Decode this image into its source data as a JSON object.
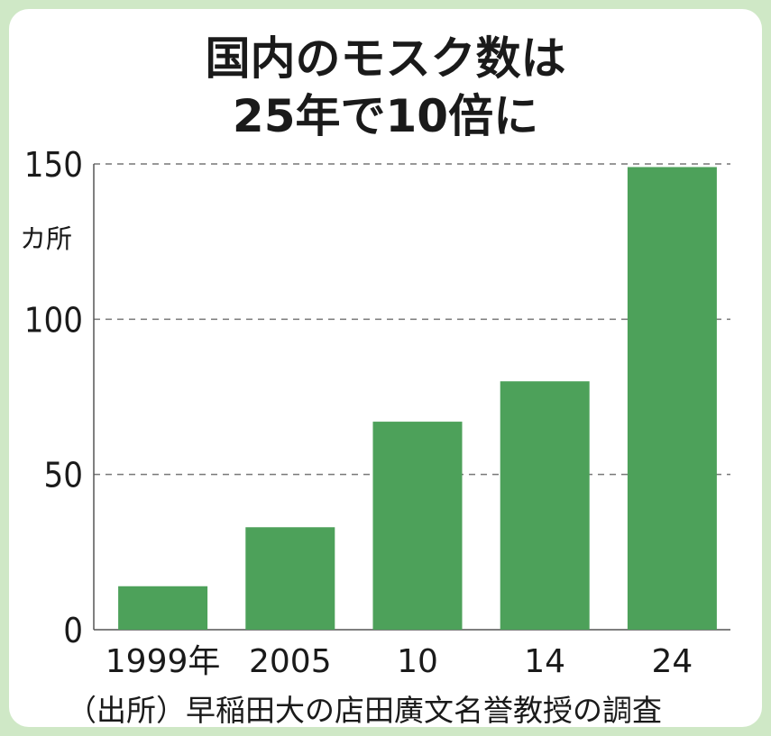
{
  "title": [
    "国内のモスク数は",
    "25年で10倍に"
  ],
  "unit": "カ所",
  "source": "（出所）早稲田大の店田廣文名誉教授の調査",
  "colors": {
    "bar": "#4da15a",
    "grid": "#777777",
    "text": "#1a1a1a",
    "background": "#cfe8c6",
    "card": "#ffffff"
  },
  "chart_data": {
    "type": "bar",
    "title": "国内のモスク数は 25年で10倍に",
    "categories": [
      "1999年",
      "2005",
      "10",
      "14",
      "24"
    ],
    "values": [
      14,
      33,
      67,
      80,
      149
    ],
    "ylabel": "カ所",
    "xlabel": "",
    "ylim": [
      0,
      150
    ],
    "yticks": [
      0,
      50,
      100,
      150
    ],
    "grid": true
  }
}
